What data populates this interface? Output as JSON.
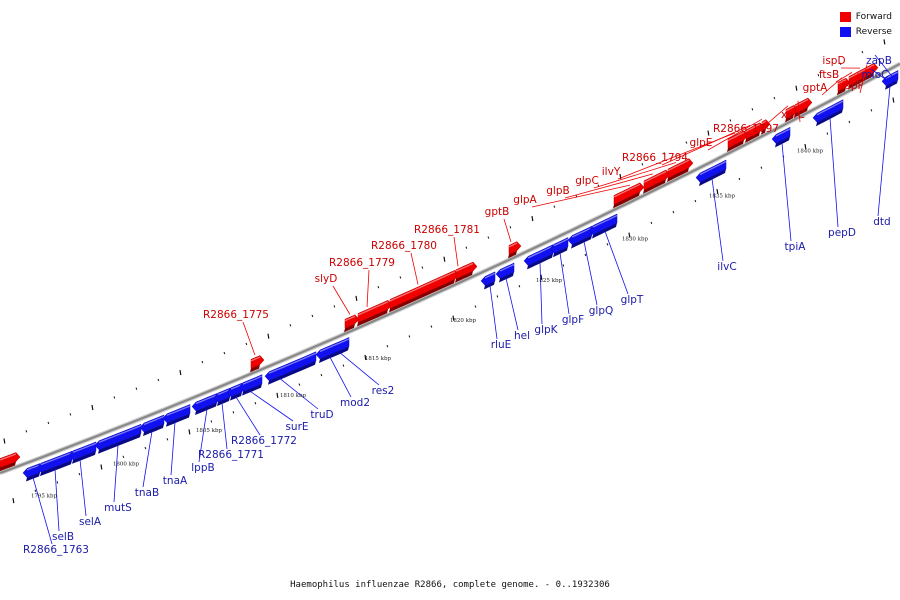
{
  "caption": "Haemophilus influenzae R2866, complete genome. - 0..1932306",
  "legend": [
    {
      "label": "Forward",
      "color": "#f00000"
    },
    {
      "label": "Reverse",
      "color": "#1010f0"
    }
  ],
  "colors": {
    "forward": "#f00000",
    "reverse": "#1010f0",
    "backbone": "#888888"
  },
  "ticks": [
    "1795 kbp",
    "1800 kbp",
    "1805 kbp",
    "1810 kbp",
    "1815 kbp",
    "1820 kbp",
    "1825 kbp",
    "1830 kbp",
    "1835 kbp",
    "1840 kbp"
  ],
  "forward_genes": [
    "R2866_1775",
    "slyD",
    "R2866_1779",
    "R2866_1780",
    "R2866_1781",
    "gptB",
    "glpA",
    "glpB",
    "glpC",
    "ilvY",
    "R2866_1794",
    "glpE",
    "R2866_1797",
    "xerC",
    "gptA",
    "ftsB",
    "ispD",
    "ispF"
  ],
  "reverse_genes": [
    "R2866_1763",
    "selB",
    "selA",
    "mutS",
    "tnaB",
    "tnaA",
    "lppB",
    "R2866_1771",
    "R2866_1772",
    "surE",
    "truD",
    "mod2",
    "res2",
    "rluE",
    "hel",
    "glpK",
    "glpF",
    "glpQ",
    "glpT",
    "ilvC",
    "tpiA",
    "pepD",
    "dtd",
    "mioC",
    "zapB"
  ]
}
